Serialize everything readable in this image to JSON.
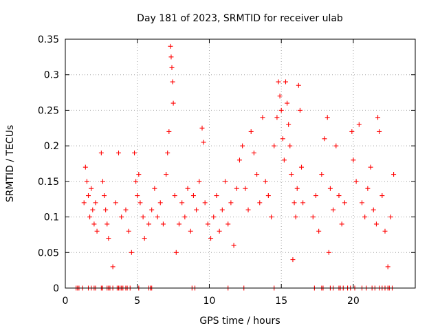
{
  "chart_data": {
    "type": "scatter",
    "title": "Day 181 of 2023, SRMTID for receiver ulab",
    "xlabel": "GPS time / hours",
    "ylabel": "SRMTID / TECUs",
    "xlim": [
      0,
      24.3
    ],
    "ylim": [
      0,
      0.35
    ],
    "x_ticks": [
      0,
      5,
      10,
      15,
      20
    ],
    "x_tick_labels": [
      "0",
      "5",
      "10",
      "15",
      "20"
    ],
    "y_ticks": [
      0,
      0.05,
      0.1,
      0.15,
      0.2,
      0.25,
      0.3,
      0.35
    ],
    "y_tick_labels": [
      "0",
      "0.05",
      "0.1",
      "0.15",
      "0.2",
      "0.25",
      "0.3",
      "0.35"
    ],
    "grid": true,
    "marker": "+",
    "color": "#ff0000",
    "series": [
      {
        "name": "SRMTID",
        "points": [
          [
            1.3,
            0.12
          ],
          [
            1.4,
            0.17
          ],
          [
            1.5,
            0.15
          ],
          [
            1.6,
            0.13
          ],
          [
            1.7,
            0.1
          ],
          [
            1.8,
            0.14
          ],
          [
            1.9,
            0.11
          ],
          [
            2.0,
            0.09
          ],
          [
            2.1,
            0.12
          ],
          [
            2.2,
            0.08
          ],
          [
            2.5,
            0.19
          ],
          [
            2.6,
            0.15
          ],
          [
            2.7,
            0.13
          ],
          [
            2.8,
            0.11
          ],
          [
            2.9,
            0.09
          ],
          [
            3.0,
            0.07
          ],
          [
            3.3,
            0.03
          ],
          [
            3.5,
            0.12
          ],
          [
            3.7,
            0.19
          ],
          [
            3.9,
            0.1
          ],
          [
            4.2,
            0.11
          ],
          [
            4.4,
            0.08
          ],
          [
            4.6,
            0.05
          ],
          [
            4.8,
            0.19
          ],
          [
            4.9,
            0.15
          ],
          [
            5.0,
            0.13
          ],
          [
            5.1,
            0.16
          ],
          [
            5.2,
            0.12
          ],
          [
            5.4,
            0.1
          ],
          [
            5.5,
            0.07
          ],
          [
            5.8,
            0.09
          ],
          [
            6.0,
            0.11
          ],
          [
            6.2,
            0.14
          ],
          [
            6.4,
            0.1
          ],
          [
            6.6,
            0.12
          ],
          [
            6.8,
            0.09
          ],
          [
            7.0,
            0.16
          ],
          [
            7.1,
            0.19
          ],
          [
            7.2,
            0.22
          ],
          [
            7.3,
            0.34
          ],
          [
            7.35,
            0.325
          ],
          [
            7.4,
            0.31
          ],
          [
            7.45,
            0.29
          ],
          [
            7.5,
            0.26
          ],
          [
            7.6,
            0.13
          ],
          [
            7.7,
            0.05
          ],
          [
            7.9,
            0.09
          ],
          [
            8.1,
            0.12
          ],
          [
            8.3,
            0.1
          ],
          [
            8.5,
            0.14
          ],
          [
            8.7,
            0.08
          ],
          [
            8.9,
            0.13
          ],
          [
            9.1,
            0.11
          ],
          [
            9.3,
            0.15
          ],
          [
            9.5,
            0.225
          ],
          [
            9.6,
            0.205
          ],
          [
            9.7,
            0.12
          ],
          [
            9.9,
            0.09
          ],
          [
            10.1,
            0.07
          ],
          [
            10.3,
            0.1
          ],
          [
            10.5,
            0.13
          ],
          [
            10.7,
            0.08
          ],
          [
            10.9,
            0.11
          ],
          [
            11.1,
            0.15
          ],
          [
            11.3,
            0.09
          ],
          [
            11.5,
            0.12
          ],
          [
            11.7,
            0.06
          ],
          [
            11.9,
            0.14
          ],
          [
            12.1,
            0.18
          ],
          [
            12.3,
            0.2
          ],
          [
            12.5,
            0.14
          ],
          [
            12.7,
            0.11
          ],
          [
            12.9,
            0.22
          ],
          [
            13.1,
            0.19
          ],
          [
            13.3,
            0.16
          ],
          [
            13.5,
            0.12
          ],
          [
            13.7,
            0.24
          ],
          [
            13.9,
            0.15
          ],
          [
            14.1,
            0.13
          ],
          [
            14.3,
            0.1
          ],
          [
            14.5,
            0.2
          ],
          [
            14.7,
            0.24
          ],
          [
            14.8,
            0.29
          ],
          [
            14.9,
            0.27
          ],
          [
            15.0,
            0.25
          ],
          [
            15.1,
            0.21
          ],
          [
            15.2,
            0.18
          ],
          [
            15.3,
            0.29
          ],
          [
            15.4,
            0.26
          ],
          [
            15.5,
            0.23
          ],
          [
            15.6,
            0.2
          ],
          [
            15.7,
            0.16
          ],
          [
            15.8,
            0.04
          ],
          [
            15.9,
            0.12
          ],
          [
            16.0,
            0.1
          ],
          [
            16.1,
            0.14
          ],
          [
            16.2,
            0.285
          ],
          [
            16.3,
            0.25
          ],
          [
            16.4,
            0.17
          ],
          [
            16.5,
            0.12
          ],
          [
            17.2,
            0.1
          ],
          [
            17.4,
            0.13
          ],
          [
            17.6,
            0.08
          ],
          [
            17.8,
            0.16
          ],
          [
            18.0,
            0.21
          ],
          [
            18.2,
            0.24
          ],
          [
            18.3,
            0.05
          ],
          [
            18.4,
            0.14
          ],
          [
            18.6,
            0.11
          ],
          [
            18.8,
            0.2
          ],
          [
            19.0,
            0.13
          ],
          [
            19.2,
            0.09
          ],
          [
            19.4,
            0.12
          ],
          [
            19.9,
            0.22
          ],
          [
            20.0,
            0.18
          ],
          [
            20.2,
            0.15
          ],
          [
            20.4,
            0.23
          ],
          [
            20.6,
            0.12
          ],
          [
            20.8,
            0.1
          ],
          [
            21.0,
            0.14
          ],
          [
            21.2,
            0.17
          ],
          [
            21.4,
            0.11
          ],
          [
            21.6,
            0.09
          ],
          [
            21.7,
            0.24
          ],
          [
            21.8,
            0.22
          ],
          [
            22.0,
            0.13
          ],
          [
            22.2,
            0.08
          ],
          [
            22.4,
            0.03
          ],
          [
            22.6,
            0.1
          ],
          [
            22.8,
            0.16
          ]
        ]
      }
    ],
    "zero_line_markers": [
      0.75,
      0.85,
      0.95,
      1.2,
      1.6,
      1.8,
      2.0,
      2.1,
      2.5,
      2.6,
      2.9,
      3.0,
      3.1,
      3.3,
      3.6,
      3.7,
      3.8,
      3.9,
      4.0,
      4.2,
      4.3,
      4.5,
      5.1,
      5.8,
      5.9,
      6.0,
      8.8,
      9.0,
      11.3,
      12.4,
      14.5,
      17.3,
      17.8,
      17.9,
      18.4,
      18.6,
      19.0,
      19.1,
      19.3,
      19.6,
      19.8,
      20.1,
      20.6,
      20.9,
      21.3,
      21.5,
      21.8,
      22.0,
      22.2,
      22.4,
      22.5,
      22.7
    ]
  }
}
